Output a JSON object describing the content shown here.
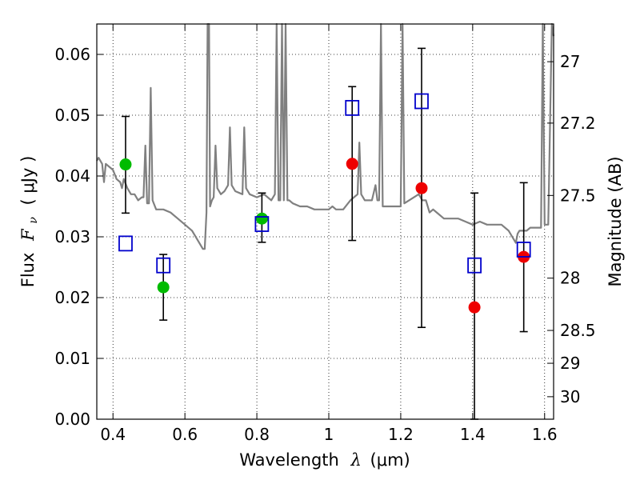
{
  "chart_data": {
    "type": "scatter",
    "xlabel_text": "Wavelength",
    "xlabel_symbol": "λ",
    "xlabel_unit": "(μm)",
    "ylabel_text": "Flux",
    "ylabel_symbol": "F",
    "ylabel_subscript": "ν",
    "ylabel_unit": "( μJy )",
    "ylabel_right": "Magnitude (AB)",
    "xlim": [
      0.355,
      1.625
    ],
    "ylim": [
      0.0,
      0.065
    ],
    "x_ticks": [
      0.4,
      0.6,
      0.8,
      1.0,
      1.2,
      1.4,
      1.6
    ],
    "x_tick_labels": [
      "0.4",
      "0.6",
      "0.8",
      "1",
      "1.2",
      "1.4",
      "1.6"
    ],
    "y_ticks": [
      0.0,
      0.01,
      0.02,
      0.03,
      0.04,
      0.05,
      0.06
    ],
    "y_tick_labels": [
      "0.00",
      "0.01",
      "0.02",
      "0.03",
      "0.04",
      "0.05",
      "0.06"
    ],
    "right_ticks": [
      {
        "label": "27",
        "flux": 0.0588
      },
      {
        "label": "27.2",
        "flux": 0.0487
      },
      {
        "label": "27.5",
        "flux": 0.0368
      },
      {
        "label": "28",
        "flux": 0.0232
      },
      {
        "label": "28.5",
        "flux": 0.0146
      },
      {
        "label": "29",
        "flux": 0.0092
      },
      {
        "label": "30",
        "flux": 0.0037
      }
    ],
    "grid": true,
    "series": [
      {
        "marker": "circle",
        "color": "#00bb00",
        "points": [
          {
            "x": 0.435,
            "y": 0.0419,
            "err_lo": 0.0339,
            "err_hi": 0.0498
          },
          {
            "x": 0.54,
            "y": 0.0217,
            "err_lo": 0.0163,
            "err_hi": 0.0271
          },
          {
            "x": 0.814,
            "y": 0.033,
            "err_lo": 0.0291,
            "err_hi": 0.0372
          }
        ]
      },
      {
        "marker": "circle",
        "color": "#ee0000",
        "points": [
          {
            "x": 1.065,
            "y": 0.042,
            "err_lo": 0.0294,
            "err_hi": 0.0547
          },
          {
            "x": 1.258,
            "y": 0.038,
            "err_lo": 0.0151,
            "err_hi": 0.061
          },
          {
            "x": 1.405,
            "y": 0.0184,
            "err_lo": 0.0,
            "err_hi": 0.0372
          },
          {
            "x": 1.542,
            "y": 0.0267,
            "err_lo": 0.0144,
            "err_hi": 0.0389
          }
        ]
      },
      {
        "marker": "open-square",
        "color": "#0000cc",
        "points": [
          {
            "x": 0.435,
            "y": 0.0289
          },
          {
            "x": 0.54,
            "y": 0.0253
          },
          {
            "x": 0.814,
            "y": 0.0321
          },
          {
            "x": 1.065,
            "y": 0.0512
          },
          {
            "x": 1.258,
            "y": 0.0523
          },
          {
            "x": 1.405,
            "y": 0.0253
          },
          {
            "x": 1.542,
            "y": 0.0279
          }
        ]
      },
      {
        "marker": "line",
        "color": "#808080",
        "points": [
          [
            0.355,
            0.0425
          ],
          [
            0.36,
            0.043
          ],
          [
            0.37,
            0.042
          ],
          [
            0.375,
            0.039
          ],
          [
            0.38,
            0.042
          ],
          [
            0.39,
            0.0415
          ],
          [
            0.4,
            0.041
          ],
          [
            0.41,
            0.0395
          ],
          [
            0.42,
            0.039
          ],
          [
            0.425,
            0.038
          ],
          [
            0.43,
            0.0395
          ],
          [
            0.44,
            0.038
          ],
          [
            0.45,
            0.037
          ],
          [
            0.46,
            0.037
          ],
          [
            0.47,
            0.036
          ],
          [
            0.48,
            0.0365
          ],
          [
            0.485,
            0.0365
          ],
          [
            0.49,
            0.045
          ],
          [
            0.495,
            0.0355
          ],
          [
            0.5,
            0.0355
          ],
          [
            0.505,
            0.0545
          ],
          [
            0.51,
            0.036
          ],
          [
            0.52,
            0.0345
          ],
          [
            0.54,
            0.0345
          ],
          [
            0.56,
            0.034
          ],
          [
            0.58,
            0.033
          ],
          [
            0.6,
            0.032
          ],
          [
            0.62,
            0.031
          ],
          [
            0.64,
            0.029
          ],
          [
            0.65,
            0.028
          ],
          [
            0.655,
            0.028
          ],
          [
            0.66,
            0.034
          ],
          [
            0.663,
            0.065
          ],
          [
            0.667,
            0.065
          ],
          [
            0.67,
            0.035
          ],
          [
            0.675,
            0.036
          ],
          [
            0.68,
            0.0365
          ],
          [
            0.685,
            0.045
          ],
          [
            0.69,
            0.038
          ],
          [
            0.7,
            0.037
          ],
          [
            0.71,
            0.0375
          ],
          [
            0.72,
            0.0385
          ],
          [
            0.725,
            0.048
          ],
          [
            0.73,
            0.0385
          ],
          [
            0.74,
            0.0375
          ],
          [
            0.76,
            0.037
          ],
          [
            0.765,
            0.048
          ],
          [
            0.77,
            0.038
          ],
          [
            0.78,
            0.037
          ],
          [
            0.8,
            0.0365
          ],
          [
            0.82,
            0.037
          ],
          [
            0.84,
            0.036
          ],
          [
            0.85,
            0.037
          ],
          [
            0.855,
            0.065
          ],
          [
            0.86,
            0.036
          ],
          [
            0.865,
            0.036
          ],
          [
            0.87,
            0.065
          ],
          [
            0.875,
            0.036
          ],
          [
            0.88,
            0.065
          ],
          [
            0.885,
            0.036
          ],
          [
            0.89,
            0.036
          ],
          [
            0.9,
            0.0355
          ],
          [
            0.92,
            0.035
          ],
          [
            0.94,
            0.035
          ],
          [
            0.96,
            0.0345
          ],
          [
            0.98,
            0.0345
          ],
          [
            1.0,
            0.0345
          ],
          [
            1.01,
            0.035
          ],
          [
            1.02,
            0.0345
          ],
          [
            1.04,
            0.0345
          ],
          [
            1.06,
            0.036
          ],
          [
            1.08,
            0.037
          ],
          [
            1.085,
            0.0455
          ],
          [
            1.09,
            0.037
          ],
          [
            1.1,
            0.036
          ],
          [
            1.12,
            0.036
          ],
          [
            1.13,
            0.0385
          ],
          [
            1.135,
            0.036
          ],
          [
            1.14,
            0.036
          ],
          [
            1.145,
            0.065
          ],
          [
            1.15,
            0.035
          ],
          [
            1.2,
            0.035
          ],
          [
            1.205,
            0.065
          ],
          [
            1.21,
            0.0355
          ],
          [
            1.25,
            0.037
          ],
          [
            1.26,
            0.036
          ],
          [
            1.27,
            0.036
          ],
          [
            1.28,
            0.034
          ],
          [
            1.29,
            0.0345
          ],
          [
            1.3,
            0.034
          ],
          [
            1.32,
            0.033
          ],
          [
            1.34,
            0.033
          ],
          [
            1.36,
            0.033
          ],
          [
            1.38,
            0.0325
          ],
          [
            1.4,
            0.032
          ],
          [
            1.42,
            0.0325
          ],
          [
            1.44,
            0.032
          ],
          [
            1.46,
            0.032
          ],
          [
            1.48,
            0.032
          ],
          [
            1.5,
            0.031
          ],
          [
            1.51,
            0.03
          ],
          [
            1.52,
            0.029
          ],
          [
            1.525,
            0.0305
          ],
          [
            1.53,
            0.031
          ],
          [
            1.54,
            0.031
          ],
          [
            1.55,
            0.031
          ],
          [
            1.56,
            0.0315
          ],
          [
            1.57,
            0.0315
          ],
          [
            1.58,
            0.0315
          ],
          [
            1.59,
            0.0315
          ],
          [
            1.595,
            0.065
          ],
          [
            1.6,
            0.032
          ],
          [
            1.61,
            0.032
          ],
          [
            1.62,
            0.065
          ],
          [
            1.625,
            0.063
          ]
        ]
      }
    ]
  }
}
